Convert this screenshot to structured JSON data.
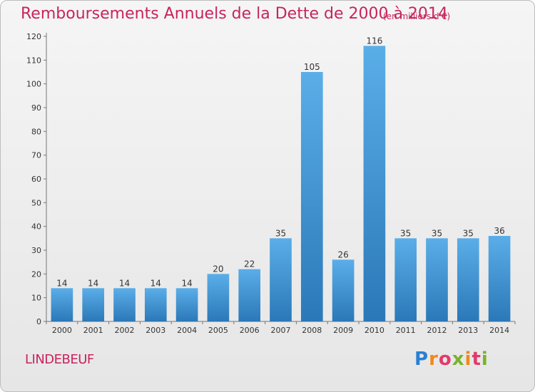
{
  "header": {
    "title": "Remboursements Annuels de la Dette de 2000 à 2014",
    "subtitle": "(en milliers d'€)"
  },
  "footer": {
    "commune": "LINDEBEUF",
    "logo_text": "Proxiti",
    "logo_colors": [
      "#2a7fd4",
      "#ef8a1c",
      "#e23b6b",
      "#79b32b"
    ]
  },
  "chart_data": {
    "type": "bar",
    "title": "Remboursements Annuels de la Dette de 2000 à 2014",
    "subtitle": "(en milliers d'€)",
    "categories": [
      "2000",
      "2001",
      "2002",
      "2003",
      "2004",
      "2005",
      "2006",
      "2007",
      "2008",
      "2009",
      "2010",
      "2011",
      "2012",
      "2013",
      "2014"
    ],
    "values": [
      14,
      14,
      14,
      14,
      14,
      20,
      22,
      35,
      105,
      26,
      116,
      35,
      35,
      35,
      36
    ],
    "ylim": [
      0,
      120
    ],
    "yticks": [
      0,
      10,
      20,
      30,
      40,
      50,
      60,
      70,
      80,
      90,
      100,
      110,
      120
    ],
    "grid": false,
    "bar_color_top": "#5aaee8",
    "bar_color_bottom": "#2b78b8",
    "xlabel": "",
    "ylabel": ""
  }
}
